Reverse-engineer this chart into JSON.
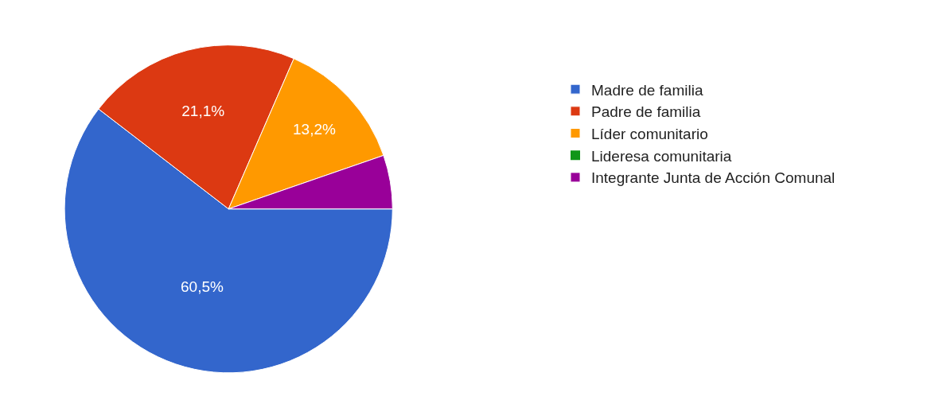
{
  "chart_data": {
    "type": "pie",
    "categories": [
      "Madre de familia",
      "Padre de familia",
      "Líder comunitario",
      "Lideresa comunitaria",
      "Integrante Junta de Acción Comunal"
    ],
    "values": [
      60.5,
      21.1,
      13.2,
      0,
      5.3
    ],
    "colors": [
      "#3366cc",
      "#dc3912",
      "#ff9900",
      "#109618",
      "#990099"
    ],
    "value_labels": [
      "60,5%",
      "21,1%",
      "13,2%",
      null,
      null
    ],
    "legend": "right"
  }
}
